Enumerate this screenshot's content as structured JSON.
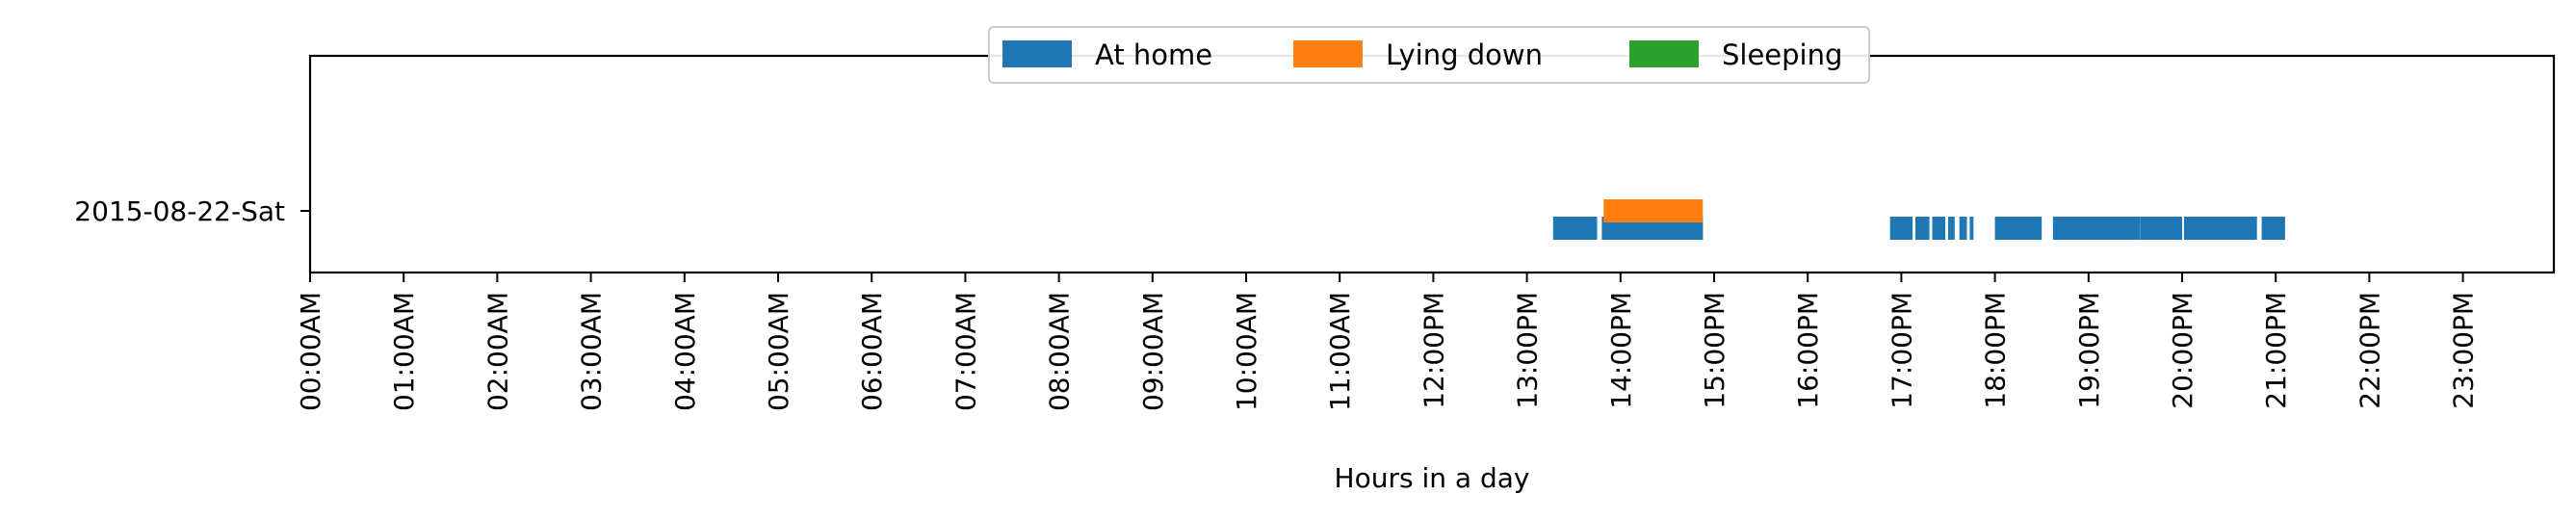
{
  "chart_data": {
    "type": "timeline",
    "xlabel": "Hours in a day",
    "xlim": [
      0,
      24
    ],
    "x_ticks": [
      0,
      1,
      2,
      3,
      4,
      5,
      6,
      7,
      8,
      9,
      10,
      11,
      12,
      13,
      14,
      15,
      16,
      17,
      18,
      19,
      20,
      21,
      22,
      23
    ],
    "x_tick_labels": [
      "00:00AM",
      "01:00AM",
      "02:00AM",
      "03:00AM",
      "04:00AM",
      "05:00AM",
      "06:00AM",
      "07:00AM",
      "08:00AM",
      "09:00AM",
      "10:00AM",
      "11:00AM",
      "12:00PM",
      "13:00PM",
      "14:00PM",
      "15:00PM",
      "16:00PM",
      "17:00PM",
      "18:00PM",
      "19:00PM",
      "20:00PM",
      "21:00PM",
      "22:00PM",
      "23:00PM"
    ],
    "categories": [
      "2015-08-22-Sat"
    ],
    "grid": false,
    "legend": {
      "placement": "top-center",
      "columns": 3
    },
    "series": [
      {
        "name": "At home",
        "color": "#1f77b4",
        "row": "2015-08-22-Sat",
        "intervals": [
          [
            13.28,
            13.75
          ],
          [
            13.8,
            14.88
          ],
          [
            16.88,
            17.12
          ],
          [
            17.15,
            17.3
          ],
          [
            17.33,
            17.47
          ],
          [
            17.5,
            17.57
          ],
          [
            17.62,
            17.7
          ],
          [
            17.73,
            17.77
          ],
          [
            18.0,
            18.5
          ],
          [
            18.62,
            19.1
          ],
          [
            19.1,
            19.55
          ],
          [
            19.55,
            20.0
          ],
          [
            20.02,
            20.8
          ],
          [
            20.85,
            21.1
          ]
        ]
      },
      {
        "name": "Lying down",
        "color": "#ff7f0e",
        "row": "2015-08-22-Sat",
        "intervals": [
          [
            13.82,
            14.88
          ]
        ]
      },
      {
        "name": "Sleeping",
        "color": "#2ca02c",
        "row": "2015-08-22-Sat",
        "intervals": []
      }
    ]
  }
}
